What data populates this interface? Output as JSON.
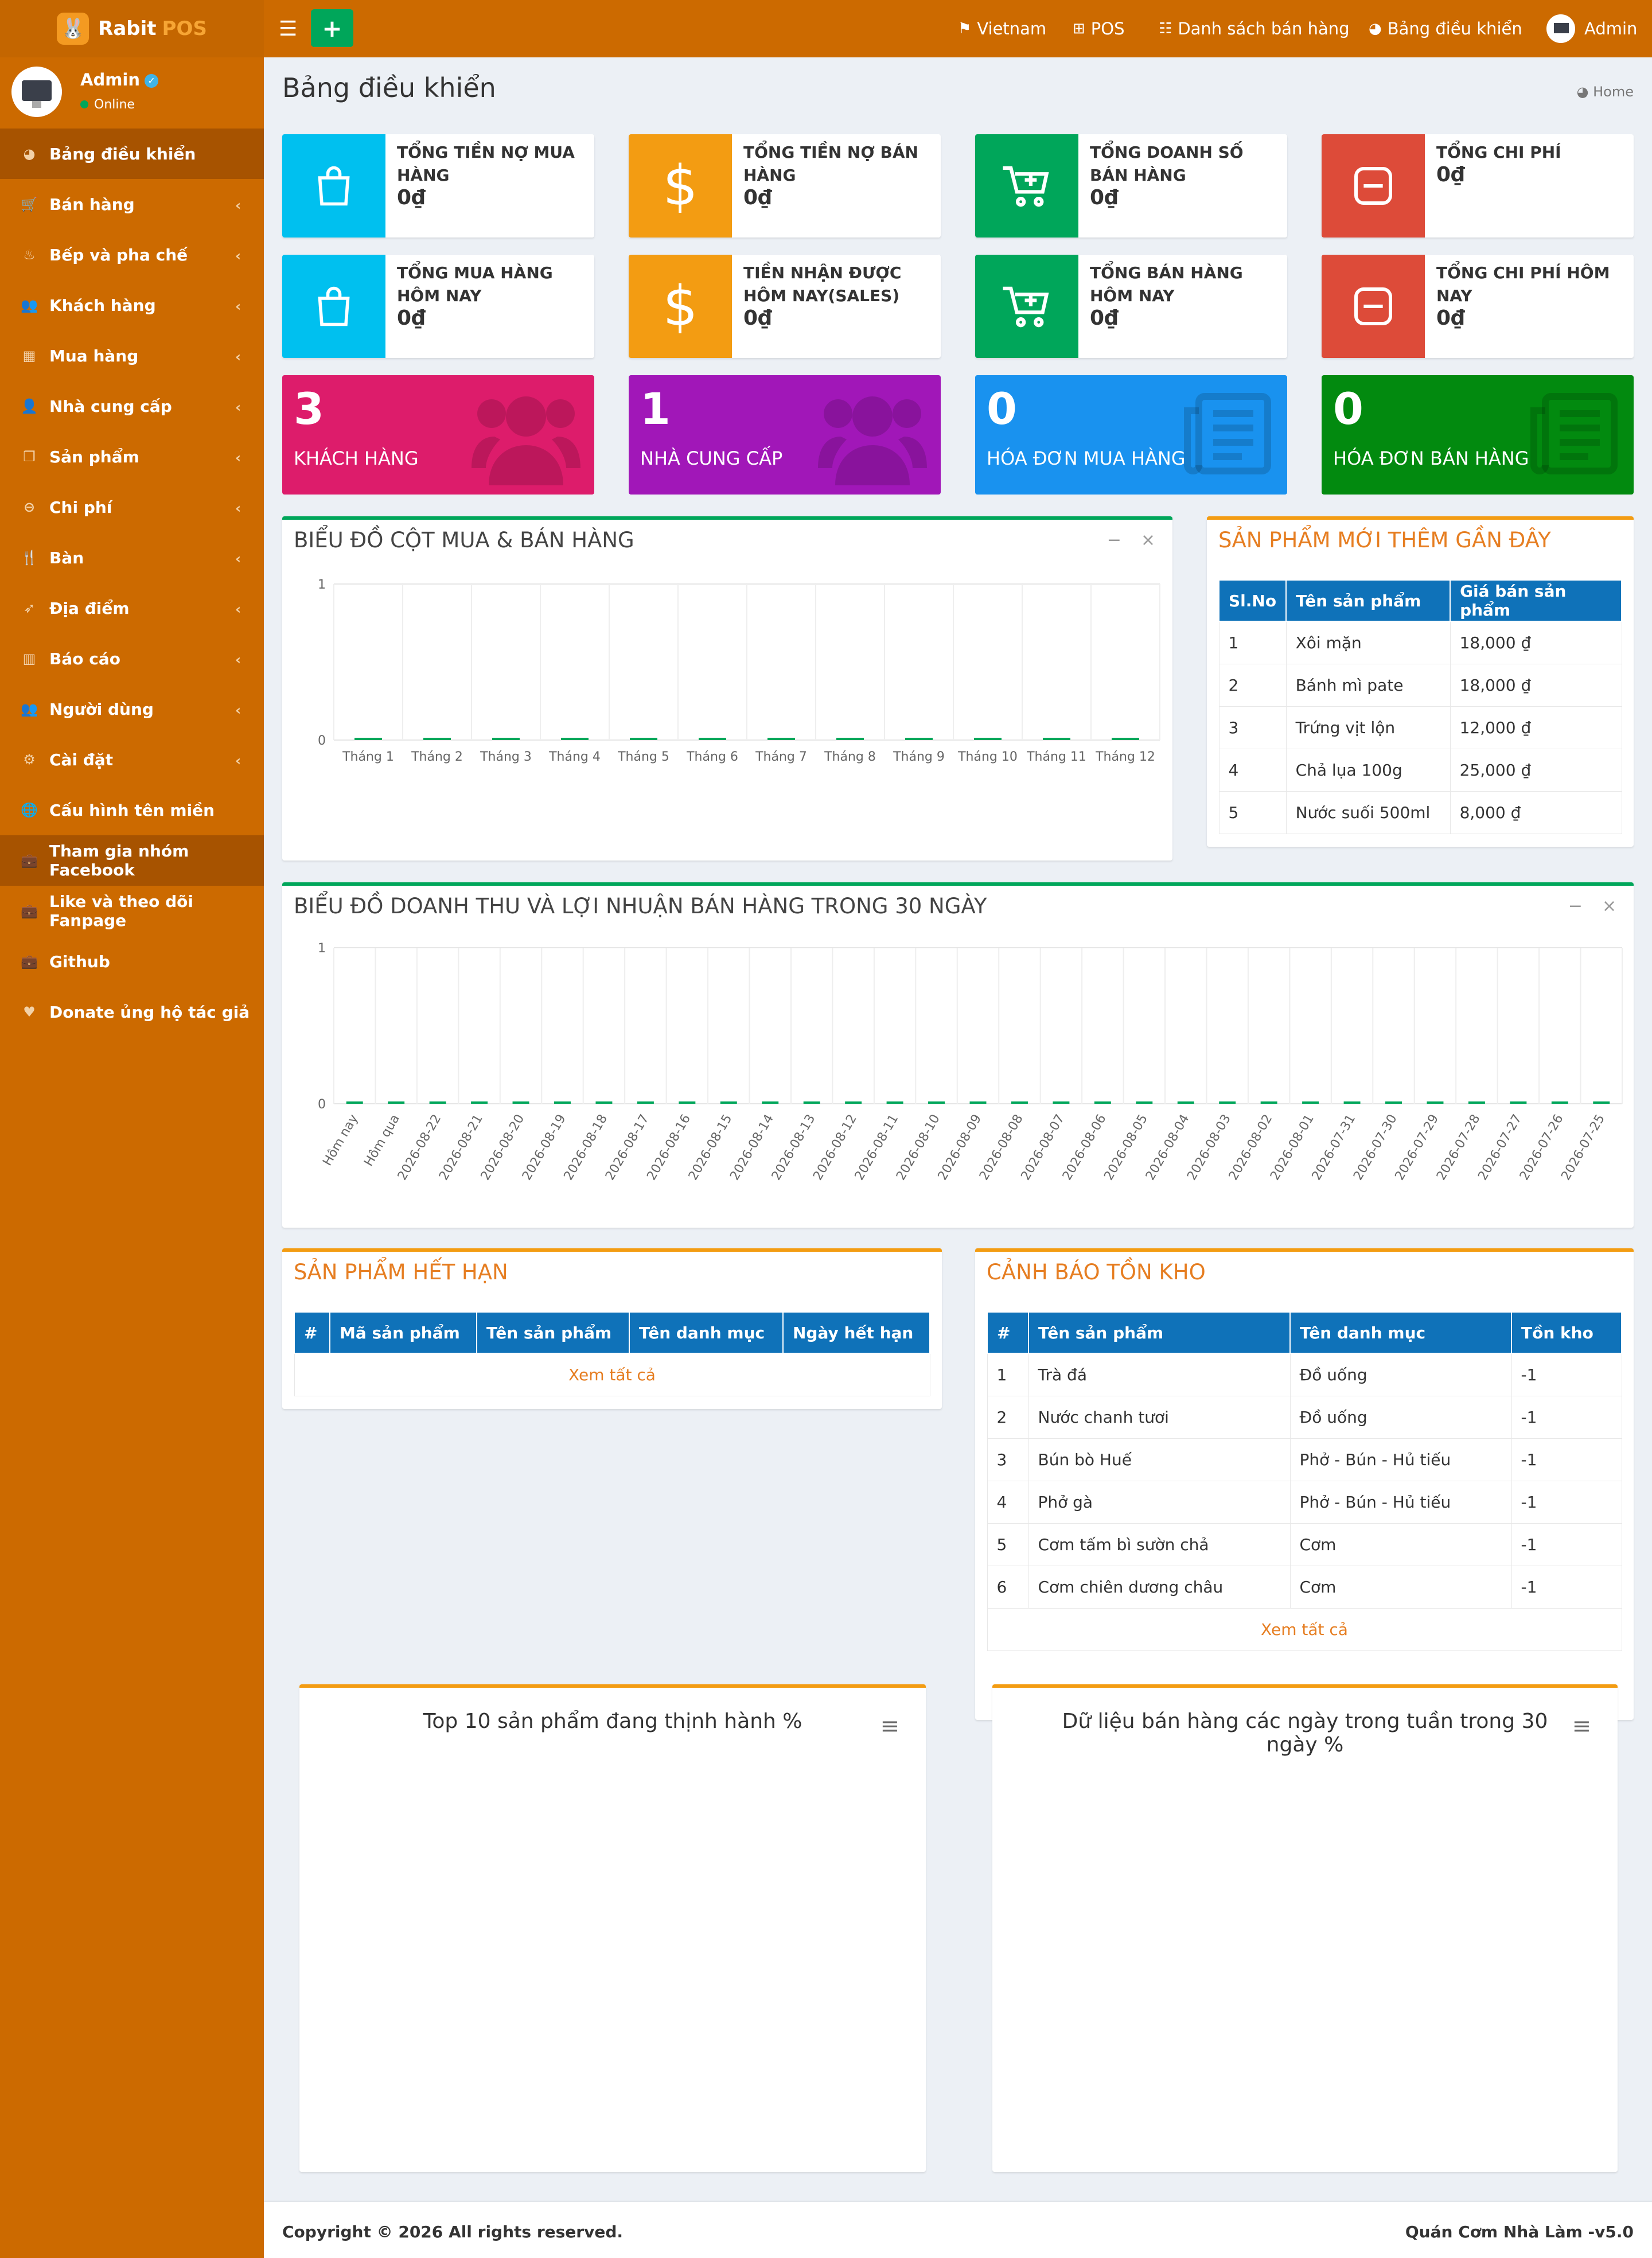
{
  "app": {
    "logo_word1": "Rabit",
    "logo_word2": "POS"
  },
  "user": {
    "name": "Admin",
    "status": "Online"
  },
  "sidebar": {
    "items": [
      {
        "label": "Bảng điều khiển",
        "icon": "dashboard-icon"
      },
      {
        "label": "Bán hàng",
        "icon": "cart-icon"
      },
      {
        "label": "Bếp và pha chế",
        "icon": "kitchen-icon"
      },
      {
        "label": "Khách hàng",
        "icon": "users-icon"
      },
      {
        "label": "Mua hàng",
        "icon": "grid-icon"
      },
      {
        "label": "Nhà cung cấp",
        "icon": "supplier-icon"
      },
      {
        "label": "Sản phẩm",
        "icon": "cubes-icon"
      },
      {
        "label": "Chi phí",
        "icon": "minus-circle-icon"
      },
      {
        "label": "Bàn",
        "icon": "utensils-icon"
      },
      {
        "label": "Địa điểm",
        "icon": "paper-plane-icon"
      },
      {
        "label": "Báo cáo",
        "icon": "bar-chart-icon"
      },
      {
        "label": "Người dùng",
        "icon": "users-icon"
      },
      {
        "label": "Cài đặt",
        "icon": "cogs-icon"
      },
      {
        "label": "Cấu hình tên miền",
        "icon": "globe-icon"
      },
      {
        "label": "Tham gia nhóm Facebook",
        "icon": "briefcase-icon"
      },
      {
        "label": "Like và theo dõi Fanpage",
        "icon": "briefcase-icon"
      },
      {
        "label": "Github",
        "icon": "briefcase-icon"
      },
      {
        "label": "Donate ủng hộ tác giả",
        "icon": "heart-icon"
      }
    ]
  },
  "header": {
    "language": "Vietnam",
    "pos": "POS",
    "sales_list": "Danh sách bán hàng",
    "dashboard": "Bảng điều khiển",
    "user": "Admin"
  },
  "page": {
    "title": "Bảng điều khiển",
    "breadcrumb": "Home"
  },
  "info_boxes": [
    {
      "label": "TỔNG TIỀN NỢ MUA HÀNG",
      "value": "0₫",
      "color": "#00c0ef",
      "icon": "shopping-bag-icon"
    },
    {
      "label": "TỔNG TIỀN NỢ BÁN HÀNG",
      "value": "0₫",
      "color": "#f39c12",
      "icon": "dollar-icon"
    },
    {
      "label": "TỔNG DOANH SỐ BÁN HÀNG",
      "value": "0₫",
      "color": "#00a65a",
      "icon": "cart-plus-icon"
    },
    {
      "label": "TỔNG CHI PHÍ",
      "value": "0₫",
      "color": "#dd4b39",
      "icon": "minus-square-icon"
    },
    {
      "label": "TỔNG MUA HÀNG HÔM NAY",
      "value": "0₫",
      "color": "#00c0ef",
      "icon": "shopping-bag-icon"
    },
    {
      "label": "TIỀN NHẬN ĐƯỢC HÔM NAY(SALES)",
      "value": "0₫",
      "color": "#f39c12",
      "icon": "dollar-icon"
    },
    {
      "label": "TỔNG BÁN HÀNG HÔM NAY",
      "value": "0₫",
      "color": "#00a65a",
      "icon": "cart-plus-icon"
    },
    {
      "label": "TỔNG CHI PHÍ HÔM NAY",
      "value": "0₫",
      "color": "#dd4b39",
      "icon": "minus-square-icon"
    }
  ],
  "small_boxes": [
    {
      "number": "3",
      "label": "KHÁCH HÀNG",
      "color": "#dd1c6b",
      "icon": "users-icon"
    },
    {
      "number": "1",
      "label": "NHÀ CUNG CẤP",
      "color": "#a117b8",
      "icon": "users-icon"
    },
    {
      "number": "0",
      "label": "HÓA ĐƠN MUA HÀNG",
      "color": "#1992ef",
      "icon": "newspaper-icon"
    },
    {
      "number": "0",
      "label": "HÓA ĐƠN BÁN HÀNG",
      "color": "#028a0f",
      "icon": "newspaper-icon"
    }
  ],
  "monthly_chart": {
    "title": "BIỂU ĐỒ CỘT MUA & BÁN HÀNG"
  },
  "daily_chart": {
    "title": "BIỂU ĐỒ DOANH THU VÀ LỢI NHUẬN BÁN HÀNG TRONG 30 NGÀY"
  },
  "recent_products": {
    "title": "SẢN PHẨM MỚI THÊM GẦN ĐÂY",
    "headers": [
      "Sl.No",
      "Tên sản phẩm",
      "Giá bán sản phẩm"
    ],
    "rows": [
      [
        "1",
        "Xôi mặn",
        "18,000 ₫"
      ],
      [
        "2",
        "Bánh mì pate",
        "18,000 ₫"
      ],
      [
        "3",
        "Trứng vịt lộn",
        "12,000 ₫"
      ],
      [
        "4",
        "Chả lụa 100g",
        "25,000 ₫"
      ],
      [
        "5",
        "Nước suối 500ml",
        "8,000 ₫"
      ]
    ]
  },
  "expired_products": {
    "title": "SẢN PHẨM HẾT HẠN",
    "headers": [
      "#",
      "Mã sản phẩm",
      "Tên sản phẩm",
      "Tên danh mục",
      "Ngày hết hạn"
    ],
    "view_all": "Xem tất cả"
  },
  "stock_alert": {
    "title": "CẢNH BÁO TỒN KHO",
    "headers": [
      "#",
      "Tên sản phẩm",
      "Tên danh mục",
      "Tồn kho"
    ],
    "rows": [
      [
        "1",
        "Trà đá",
        "Đồ uống",
        "-1"
      ],
      [
        "2",
        "Nước chanh tươi",
        "Đồ uống",
        "-1"
      ],
      [
        "3",
        "Bún bò Huế",
        "Phở - Bún - Hủ tiếu",
        "-1"
      ],
      [
        "4",
        "Phở gà",
        "Phở - Bún - Hủ tiếu",
        "-1"
      ],
      [
        "5",
        "Cơm tấm bì sườn chả",
        "Cơm",
        "-1"
      ],
      [
        "6",
        "Cơm chiên dương châu",
        "Cơm",
        "-1"
      ]
    ],
    "view_all": "Xem tất cả"
  },
  "top_products_chart": {
    "title": "Top 10 sản phẩm đang thịnh hành %"
  },
  "weekday_chart": {
    "title": "Dữ liệu bán hàng các ngày trong tuần trong 30 ngày %"
  },
  "footer": {
    "copyright": "Copyright © 2026 All rights reserved.",
    "version": "Quán Cơm Nhà Làm -v5.0"
  },
  "chart_data": [
    {
      "type": "bar",
      "title": "BIỂU ĐỒ CỘT MUA & BÁN HÀNG",
      "categories": [
        "Tháng 1",
        "Tháng 2",
        "Tháng 3",
        "Tháng 4",
        "Tháng 5",
        "Tháng 6",
        "Tháng 7",
        "Tháng 8",
        "Tháng 9",
        "Tháng 10",
        "Tháng 11",
        "Tháng 12"
      ],
      "series": [
        {
          "values": [
            0,
            0,
            0,
            0,
            0,
            0,
            0,
            0,
            0,
            0,
            0,
            0
          ],
          "color": "#00a65a"
        }
      ],
      "yticks": [
        "0",
        "1"
      ],
      "ylim": [
        0,
        1
      ],
      "grid": true
    },
    {
      "type": "bar",
      "title": "BIỂU ĐỒ DOANH THU VÀ LỢI NHUẬN BÁN HÀNG TRONG 30 NGÀY",
      "categories": [
        "Hôm nay",
        "Hôm qua",
        "2026-08-22",
        "2026-08-21",
        "2026-08-20",
        "2026-08-19",
        "2026-08-18",
        "2026-08-17",
        "2026-08-16",
        "2026-08-15",
        "2026-08-14",
        "2026-08-13",
        "2026-08-12",
        "2026-08-11",
        "2026-08-10",
        "2026-08-09",
        "2026-08-08",
        "2026-08-07",
        "2026-08-06",
        "2026-08-05",
        "2026-08-04",
        "2026-08-03",
        "2026-08-02",
        "2026-08-01",
        "2026-07-31",
        "2026-07-30",
        "2026-07-29",
        "2026-07-28",
        "2026-07-27",
        "2026-07-26",
        "2026-07-25"
      ],
      "series": [
        {
          "values": [
            0,
            0,
            0,
            0,
            0,
            0,
            0,
            0,
            0,
            0,
            0,
            0,
            0,
            0,
            0,
            0,
            0,
            0,
            0,
            0,
            0,
            0,
            0,
            0,
            0,
            0,
            0,
            0,
            0,
            0,
            0
          ],
          "color": "#00a65a"
        }
      ],
      "yticks": [
        "0",
        "1"
      ],
      "ylim": [
        0,
        1
      ],
      "grid": true
    }
  ]
}
